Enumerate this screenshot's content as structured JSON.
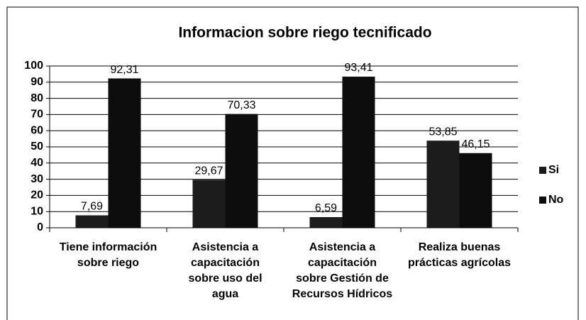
{
  "chart_data": {
    "type": "bar",
    "title": "Informacion sobre riego tecnificado",
    "categories": [
      "Tiene información\nsobre riego",
      "Asistencia a\ncapacitación\nsobre uso del\nagua",
      "Asistencia a\ncapacitación\nsobre Gestión de\nRecursos Hídricos",
      "Realiza buenas\nprácticas agrícolas"
    ],
    "series": [
      {
        "name": "Si",
        "color": "#1c1c1c",
        "values": [
          7.69,
          29.67,
          6.59,
          53.85
        ],
        "value_labels": [
          "7,69",
          "29,67",
          "6,59",
          "53,85"
        ]
      },
      {
        "name": "No",
        "color": "#0d0d0d",
        "values": [
          92.31,
          70.33,
          93.41,
          46.15
        ],
        "value_labels": [
          "92,31",
          "70,33",
          "93,41",
          "46,15"
        ]
      }
    ],
    "ylim": [
      0,
      100
    ],
    "yticks": [
      0,
      10,
      20,
      30,
      40,
      50,
      60,
      70,
      80,
      90,
      100
    ],
    "grid": true,
    "legend": "right"
  }
}
